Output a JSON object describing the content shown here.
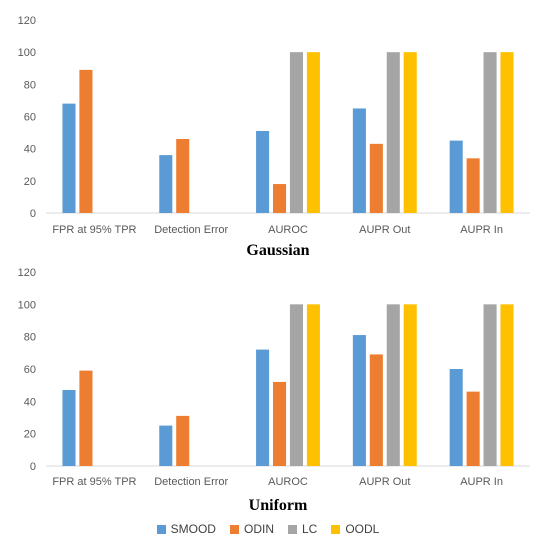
{
  "colors": {
    "SMOOD": "#5B9BD5",
    "ODIN": "#ED7D31",
    "LC": "#A5A5A5",
    "OODL": "#FFC000"
  },
  "legend": [
    "SMOOD",
    "ODIN",
    "LC",
    "OODL"
  ],
  "chart_data": [
    {
      "type": "bar",
      "title": "Gaussian",
      "categories": [
        "FPR at 95% TPR",
        "Detection Error",
        "AUROC",
        "AUPR Out",
        "AUPR In"
      ],
      "ylim": [
        0,
        120
      ],
      "yticks": [
        0,
        20,
        40,
        60,
        80,
        100,
        120
      ],
      "grid": false,
      "legend_position": "bottom",
      "series": [
        {
          "name": "SMOOD",
          "values": [
            68,
            36,
            51,
            65,
            45
          ]
        },
        {
          "name": "ODIN",
          "values": [
            89,
            46,
            18,
            43,
            34
          ]
        },
        {
          "name": "LC",
          "values": [
            null,
            null,
            100,
            100,
            100
          ]
        },
        {
          "name": "OODL",
          "values": [
            null,
            null,
            100,
            100,
            100
          ]
        }
      ]
    },
    {
      "type": "bar",
      "title": "Uniform",
      "categories": [
        "FPR at 95% TPR",
        "Detection Error",
        "AUROC",
        "AUPR Out",
        "AUPR In"
      ],
      "ylim": [
        0,
        120
      ],
      "yticks": [
        0,
        20,
        40,
        60,
        80,
        100,
        120
      ],
      "grid": false,
      "legend_position": "bottom",
      "series": [
        {
          "name": "SMOOD",
          "values": [
            47,
            25,
            72,
            81,
            60
          ]
        },
        {
          "name": "ODIN",
          "values": [
            59,
            31,
            52,
            69,
            46
          ]
        },
        {
          "name": "LC",
          "values": [
            null,
            null,
            100,
            100,
            100
          ]
        },
        {
          "name": "OODL",
          "values": [
            null,
            null,
            100,
            100,
            100
          ]
        }
      ]
    }
  ]
}
